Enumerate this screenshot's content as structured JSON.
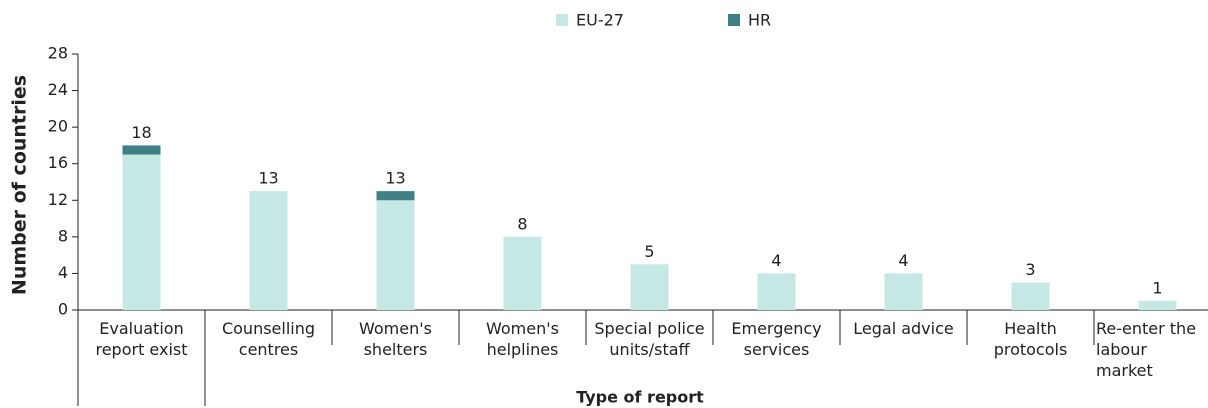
{
  "chart_data": {
    "type": "stacked_bar",
    "xlabel": "Type of report",
    "ylabel": "Number of countries",
    "categories": [
      "Evaluation report exist",
      "Counselling centres",
      "Women's shelters",
      "Women's helplines",
      "Special police units/staff",
      "Emergency services",
      "Legal advice",
      "Health protocols",
      "Re-enter the labour market"
    ],
    "series": [
      {
        "name": "EU-27",
        "color": "#c5e8e4",
        "values": [
          17,
          13,
          12,
          8,
          5,
          4,
          4,
          3,
          1
        ]
      },
      {
        "name": "HR",
        "color": "#3f7f86",
        "values": [
          1,
          0,
          1,
          0,
          0,
          0,
          0,
          0,
          0
        ]
      }
    ],
    "totals": [
      18,
      13,
      13,
      8,
      5,
      4,
      4,
      3,
      1
    ],
    "ylim": [
      0,
      28
    ],
    "yticks": [
      0,
      4,
      8,
      12,
      16,
      20,
      24,
      28
    ],
    "legend": "top"
  }
}
